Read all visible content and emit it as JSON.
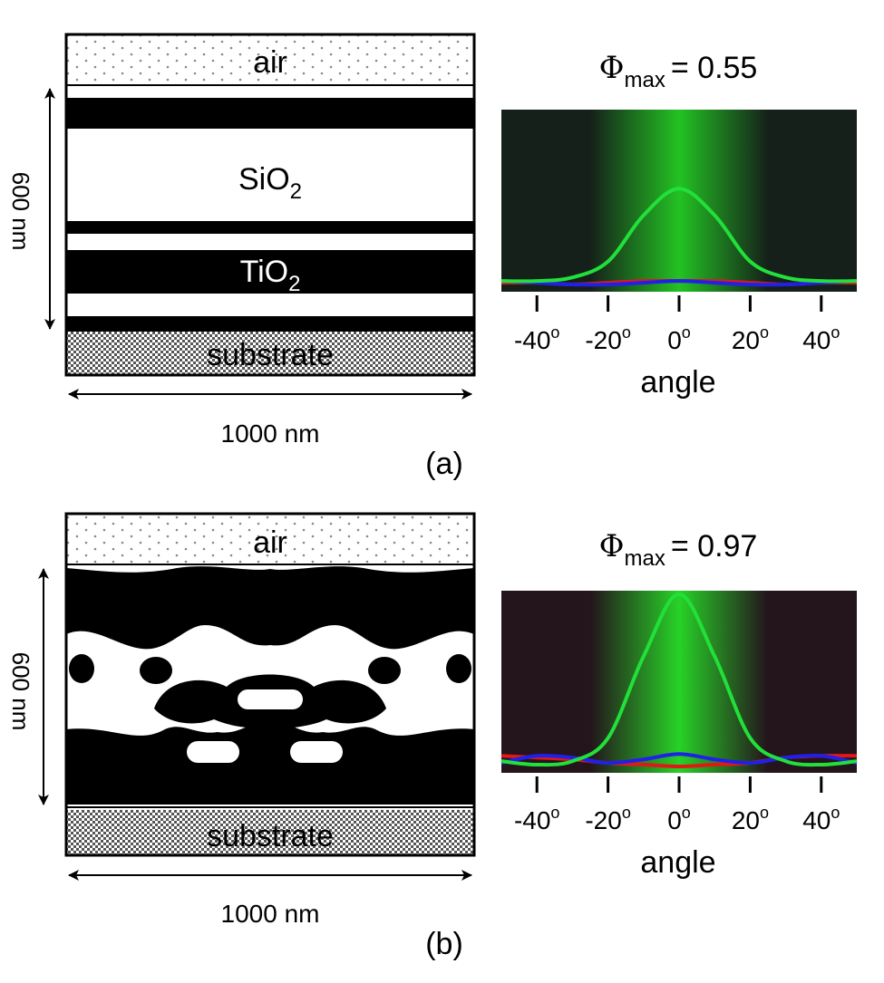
{
  "panels": [
    {
      "id": "a",
      "panel_label": "(a)",
      "layers": {
        "top": "air",
        "bottom": "substrate",
        "sio2_base": "SiO",
        "sio2_sub": "2",
        "tio2_base": "TiO",
        "tio2_sub": "2"
      },
      "height_label": "600 nm",
      "width_label": "1000 nm",
      "phi": {
        "symbol": "Φ",
        "subscript": "max",
        "value": "= 0.55"
      },
      "axis": {
        "ticks": [
          "-40",
          "-20",
          "0",
          "20",
          "40"
        ],
        "degree": "o",
        "xlabel": "angle"
      },
      "colors": {
        "background_center": "#23c223",
        "background_edge": "#16201a",
        "green": "#22e03a",
        "red": "#e01818",
        "blue": "#2020e8"
      },
      "curves": {
        "angles_deg": [
          -50,
          -40,
          -30,
          -20,
          -10,
          0,
          10,
          20,
          30,
          40,
          50
        ],
        "green": [
          0.03,
          0.03,
          0.05,
          0.14,
          0.4,
          0.55,
          0.4,
          0.14,
          0.05,
          0.03,
          0.03
        ],
        "red": [
          0.02,
          0.02,
          0.01,
          0.02,
          0.03,
          0.03,
          0.03,
          0.02,
          0.01,
          0.02,
          0.02
        ],
        "blue": [
          0.03,
          0.02,
          0.01,
          0.01,
          0.02,
          0.03,
          0.02,
          0.01,
          0.01,
          0.02,
          0.03
        ]
      }
    },
    {
      "id": "b",
      "panel_label": "(b)",
      "layers": {
        "top": "air",
        "bottom": "substrate"
      },
      "height_label": "600 nm",
      "width_label": "1000 nm",
      "phi": {
        "symbol": "Φ",
        "subscript": "max",
        "value": "= 0.97"
      },
      "axis": {
        "ticks": [
          "-40",
          "-20",
          "0",
          "20",
          "40"
        ],
        "degree": "o",
        "xlabel": "angle"
      },
      "colors": {
        "background_center": "#27d227",
        "background_edge": "#24141c",
        "green": "#22e03a",
        "red": "#e01818",
        "blue": "#2020e8"
      },
      "curves": {
        "angles_deg": [
          -50,
          -40,
          -30,
          -20,
          -10,
          0,
          10,
          20,
          30,
          40,
          50
        ],
        "green": [
          0.03,
          0.01,
          0.03,
          0.16,
          0.62,
          0.97,
          0.62,
          0.16,
          0.03,
          0.01,
          0.03
        ],
        "red": [
          0.06,
          0.05,
          0.04,
          0.02,
          0.01,
          0.0,
          0.01,
          0.02,
          0.05,
          0.06,
          0.06
        ],
        "blue": [
          0.02,
          0.06,
          0.05,
          0.02,
          0.04,
          0.07,
          0.04,
          0.02,
          0.05,
          0.06,
          0.02
        ]
      }
    }
  ]
}
